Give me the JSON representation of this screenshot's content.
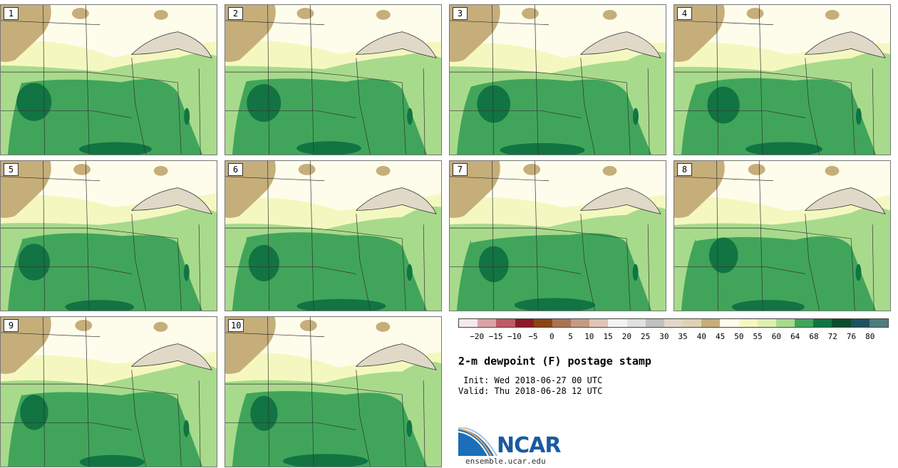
{
  "panels": [
    {
      "label": "1"
    },
    {
      "label": "2"
    },
    {
      "label": "3"
    },
    {
      "label": "4"
    },
    {
      "label": "5"
    },
    {
      "label": "6"
    },
    {
      "label": "7"
    },
    {
      "label": "8"
    },
    {
      "label": "9"
    },
    {
      "label": "10"
    }
  ],
  "colorbar": {
    "colors": [
      "#f5e8ec",
      "#d9a3a6",
      "#bd5a66",
      "#8b1a26",
      "#8b4513",
      "#a87454",
      "#c49a85",
      "#e0c4b5",
      "#f2f2f2",
      "#e0e0e0",
      "#c0c0c0",
      "#e0d9c8",
      "#ded2b4",
      "#c6ae7a",
      "#fefdeb",
      "#f4f8c0",
      "#ddefb1",
      "#a8da8c",
      "#40a55a",
      "#117442",
      "#0a4d2c",
      "#1f5060",
      "#4e7c80"
    ],
    "tick_labels": [
      "−20",
      "−15",
      "−10",
      "−5",
      "0",
      "5",
      "10",
      "15",
      "20",
      "25",
      "30",
      "35",
      "40",
      "45",
      "50",
      "55",
      "60",
      "64",
      "68",
      "72",
      "76",
      "80"
    ]
  },
  "title": "2-m dewpoint (F) postage stamp",
  "init": " Init: Wed 2018-06-27 00 UTC",
  "valid": "Valid: Thu 2018-06-28 12 UTC",
  "logo": {
    "text": "NCAR",
    "url": "ensemble.ucar.edu"
  },
  "map_colors": {
    "land_dry": "#c6ae7a",
    "land_dry_light": "#e0d9c8",
    "land_pale": "#fefdeb",
    "land_yellow": "#f4f8c0",
    "land_lightgreen": "#a8da8c",
    "land_green": "#40a55a",
    "land_darkgreen": "#117442",
    "water": "#e0d9c8",
    "border": "#333333"
  }
}
